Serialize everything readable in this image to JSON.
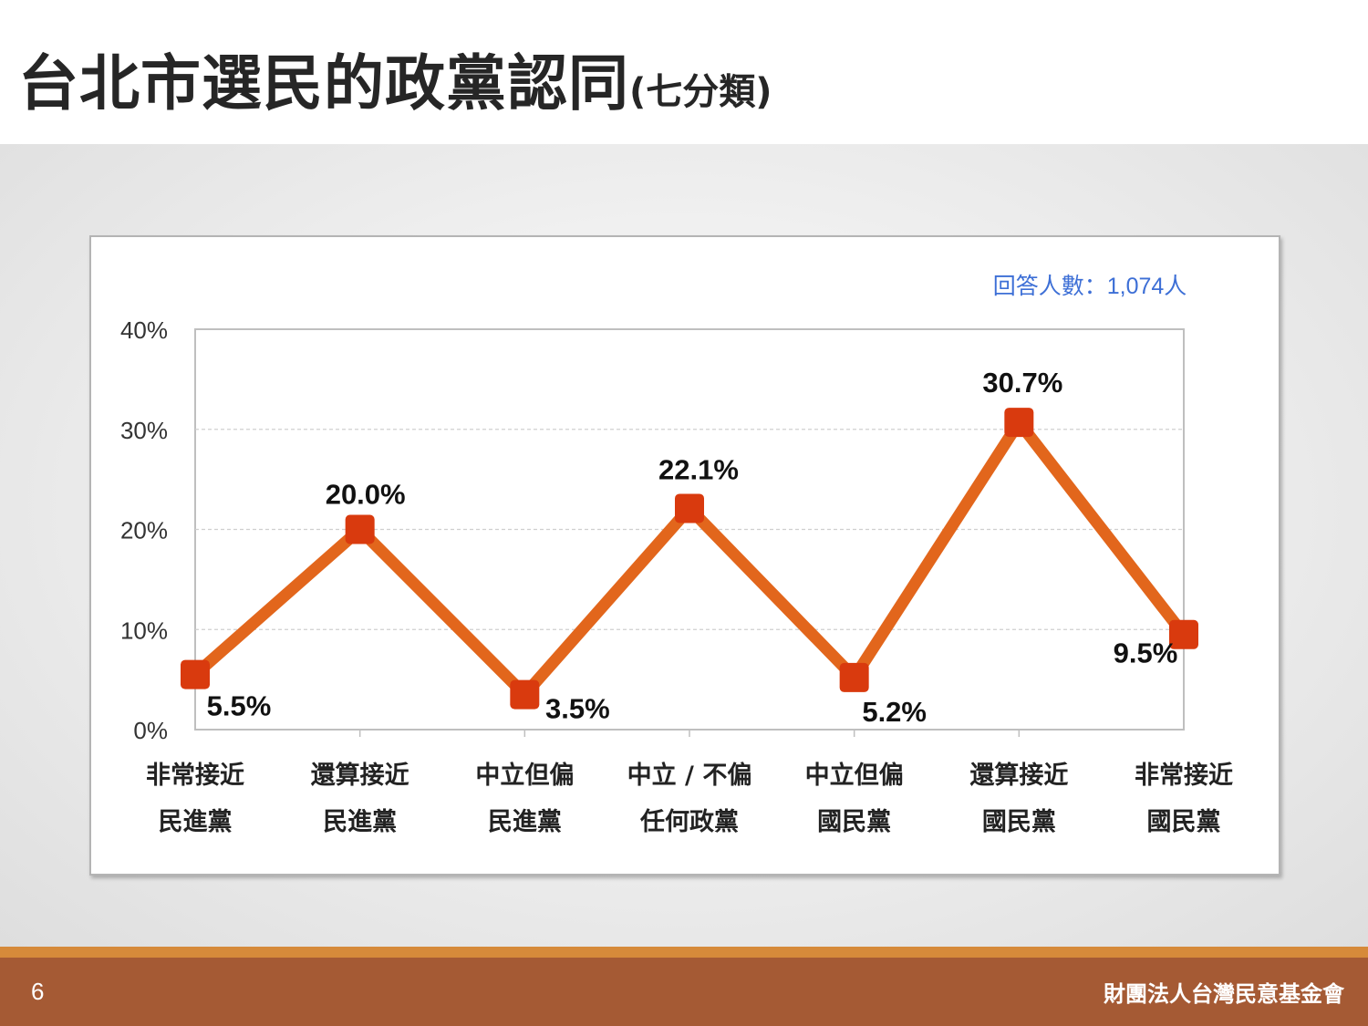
{
  "title": {
    "main": "台北市選民的政黨認同",
    "sub": "(七分類)"
  },
  "footer": {
    "page_number": "6",
    "organization": "財團法人台灣民意基金會"
  },
  "colors": {
    "line": "#e2661c",
    "marker": "#d93a0e",
    "footer": "#a55a34",
    "note": "#3d6fd6"
  },
  "chart_data": {
    "type": "line",
    "note": "回答人數：1,074人",
    "categories": [
      [
        "非常接近",
        "民進黨"
      ],
      [
        "還算接近",
        "民進黨"
      ],
      [
        "中立但偏",
        "民進黨"
      ],
      [
        "中立 / 不偏",
        "任何政黨"
      ],
      [
        "中立但偏",
        "國民黨"
      ],
      [
        "還算接近",
        "國民黨"
      ],
      [
        "非常接近",
        "國民黨"
      ]
    ],
    "values": [
      5.5,
      20.0,
      3.5,
      22.1,
      5.2,
      30.7,
      9.5
    ],
    "value_labels": [
      "5.5%",
      "20.0%",
      "3.5%",
      "22.1%",
      "5.2%",
      "30.7%",
      "9.5%"
    ],
    "label_positions": [
      "below",
      "above",
      "below",
      "above",
      "below",
      "above",
      "below"
    ],
    "yticks": [
      0,
      10,
      20,
      30,
      40
    ],
    "ytick_labels": [
      "0%",
      "10%",
      "20%",
      "30%",
      "40%"
    ],
    "ylim": [
      0,
      40
    ],
    "grid": true
  }
}
